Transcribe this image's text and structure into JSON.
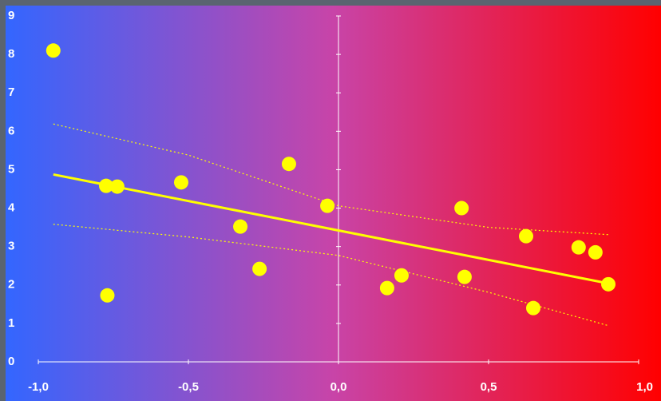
{
  "chart_data": {
    "type": "scatter",
    "color": "#ffff00",
    "xlim": [
      -1,
      1
    ],
    "ylim": [
      0,
      9
    ],
    "xticks": [
      {
        "value": -1,
        "label": "-1,0"
      },
      {
        "value": -0.5,
        "label": "-0,5"
      },
      {
        "value": 0,
        "label": "0,0"
      },
      {
        "value": 0.5,
        "label": "0,5"
      },
      {
        "value": 1,
        "label": "1,0"
      }
    ],
    "yticks": [
      0,
      1,
      2,
      3,
      4,
      5,
      6,
      7,
      8,
      9
    ],
    "points": {
      "x": [
        -0.95,
        -0.774,
        -0.737,
        -0.77,
        -0.524,
        -0.327,
        -0.263,
        -0.165,
        -0.037,
        0.162,
        0.21,
        0.41,
        0.42,
        0.625,
        0.649,
        0.8,
        0.856,
        0.899
      ],
      "values": [
        8.1,
        4.58,
        4.56,
        1.73,
        4.67,
        3.52,
        2.42,
        5.15,
        4.06,
        1.92,
        2.25,
        4.0,
        2.21,
        3.27,
        1.4,
        2.98,
        2.85,
        2.02
      ]
    },
    "fit": {
      "x": [
        -0.95,
        0.9
      ],
      "values": [
        4.875,
        2.04
      ]
    },
    "upper": {
      "x": [
        -0.95,
        -0.5,
        0,
        0.5,
        0.9
      ],
      "values": [
        6.19,
        5.38,
        4.06,
        3.5,
        3.31
      ]
    },
    "lower": {
      "x": [
        -0.95,
        -0.5,
        0,
        0.5,
        0.9
      ],
      "values": [
        3.58,
        3.25,
        2.77,
        1.81,
        0.94
      ]
    }
  }
}
